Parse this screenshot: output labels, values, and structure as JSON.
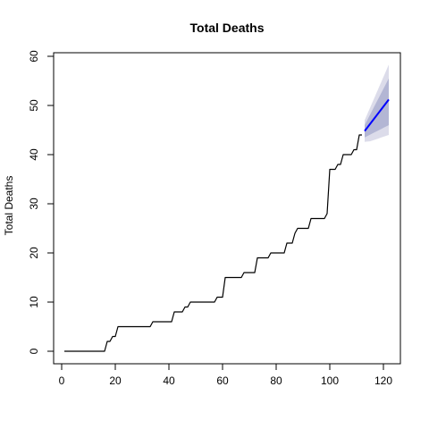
{
  "chart_data": {
    "type": "line",
    "title": "Total Deaths",
    "xlabel": "",
    "ylabel": "Total Deaths",
    "xlim": [
      0,
      122
    ],
    "ylim": [
      0,
      60
    ],
    "x_ticks": [
      0,
      20,
      40,
      60,
      80,
      100,
      120
    ],
    "y_ticks": [
      0,
      10,
      20,
      30,
      40,
      50,
      60
    ],
    "grid": false,
    "series": [
      {
        "kind": "observed_step",
        "color": "#000000",
        "points": [
          [
            1,
            0
          ],
          [
            16,
            0
          ],
          [
            17,
            2
          ],
          [
            18,
            2
          ],
          [
            19,
            3
          ],
          [
            20,
            3
          ],
          [
            21,
            5
          ],
          [
            33,
            5
          ],
          [
            34,
            6
          ],
          [
            41,
            6
          ],
          [
            42,
            8
          ],
          [
            45,
            8
          ],
          [
            46,
            9
          ],
          [
            47,
            9
          ],
          [
            48,
            10
          ],
          [
            57,
            10
          ],
          [
            58,
            11
          ],
          [
            60,
            11
          ],
          [
            61,
            15
          ],
          [
            67,
            15
          ],
          [
            68,
            16
          ],
          [
            72,
            16
          ],
          [
            73,
            19
          ],
          [
            77,
            19
          ],
          [
            78,
            20
          ],
          [
            83,
            20
          ],
          [
            84,
            22
          ],
          [
            86,
            22
          ],
          [
            87,
            24
          ],
          [
            88,
            25
          ],
          [
            92,
            25
          ],
          [
            93,
            27
          ],
          [
            98,
            27
          ],
          [
            99,
            28
          ],
          [
            100,
            37
          ],
          [
            102,
            37
          ],
          [
            103,
            38
          ],
          [
            104,
            38
          ],
          [
            105,
            40
          ],
          [
            108,
            40
          ],
          [
            109,
            41
          ],
          [
            110,
            41
          ],
          [
            111,
            44
          ],
          [
            112,
            44
          ]
        ]
      },
      {
        "kind": "forecast",
        "color": "#0000ff",
        "points": [
          [
            113,
            44.8
          ],
          [
            122,
            51.2
          ]
        ],
        "band_outer": {
          "color": "#dcdcea",
          "lower": [
            [
              113,
              42.6
            ],
            [
              115,
              42.7
            ],
            [
              122,
              44.0
            ]
          ],
          "upper": [
            [
              113,
              47.0
            ],
            [
              122,
              58.3
            ]
          ]
        },
        "band_inner": {
          "color": "#b3b6d4",
          "lower": [
            [
              113,
              43.5
            ],
            [
              122,
              46.0
            ]
          ],
          "upper": [
            [
              113,
              46.0
            ],
            [
              122,
              55.5
            ]
          ]
        }
      }
    ]
  }
}
